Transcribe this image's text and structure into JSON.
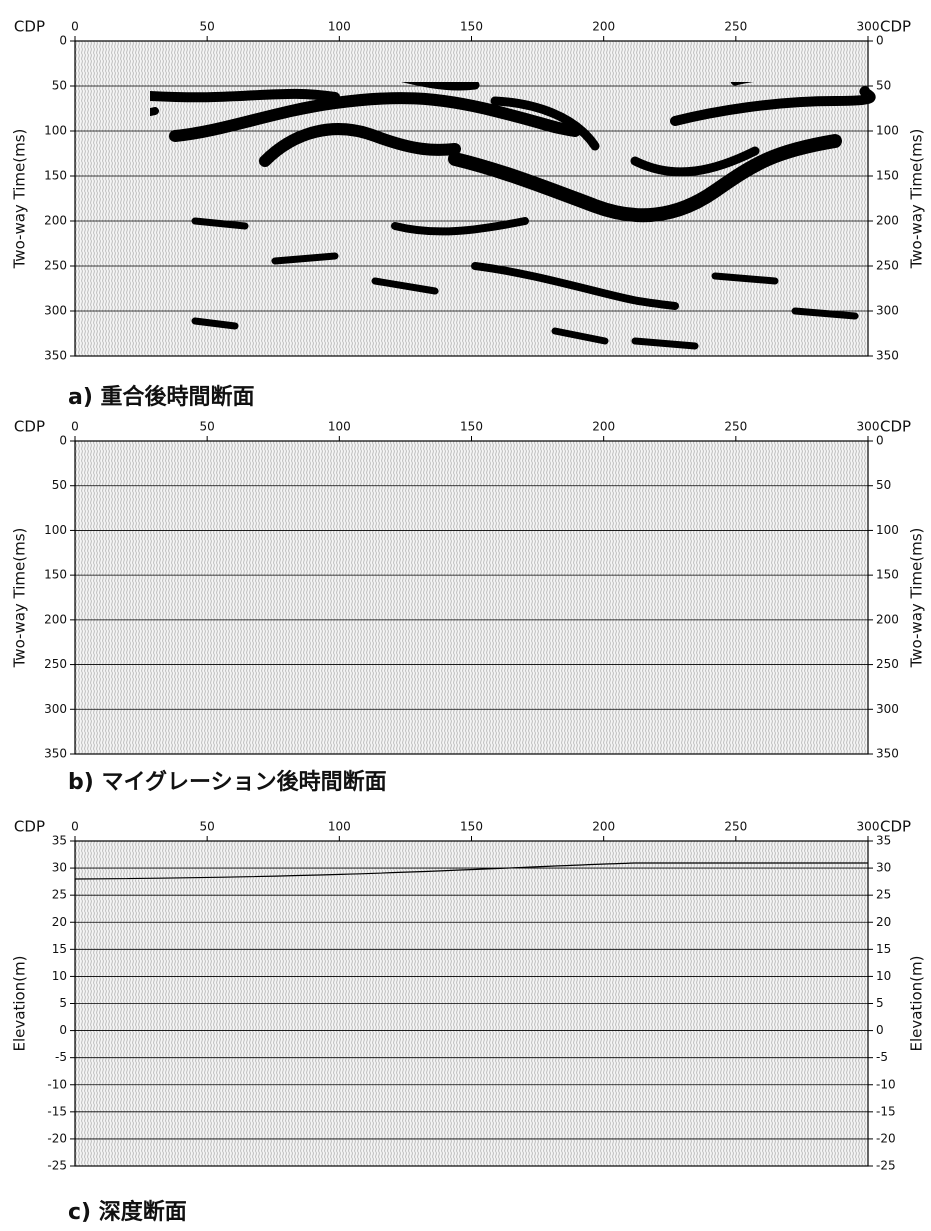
{
  "chart_data": [
    {
      "type": "seismic",
      "caption": "a) 重合後時間断面",
      "x_label": "CDP",
      "y_label": "Two-way Time(ms)",
      "xlim": [
        0,
        300
      ],
      "xticks": [
        0,
        50,
        100,
        150,
        200,
        250,
        300
      ],
      "ylim": [
        350,
        0
      ],
      "yticks": [
        0,
        50,
        100,
        150,
        200,
        250,
        300,
        350
      ],
      "grid": true
    },
    {
      "type": "seismic",
      "caption": "b) マイグレーション後時間断面",
      "x_label": "CDP",
      "y_label": "Two-way Time(ms)",
      "xlim": [
        0,
        300
      ],
      "xticks": [
        0,
        50,
        100,
        150,
        200,
        250,
        300
      ],
      "ylim": [
        350,
        0
      ],
      "yticks": [
        0,
        50,
        100,
        150,
        200,
        250,
        300,
        350
      ],
      "grid": true
    },
    {
      "type": "seismic",
      "caption": "c) 深度断面",
      "x_label": "CDP",
      "y_label": "Elevation(m)",
      "xlim": [
        0,
        300
      ],
      "xticks": [
        0,
        50,
        100,
        150,
        200,
        250,
        300
      ],
      "ylim": [
        -25,
        35
      ],
      "yticks": [
        35,
        30,
        25,
        20,
        15,
        10,
        5,
        0,
        -5,
        -10,
        -15,
        -20,
        -25
      ],
      "grid": true
    }
  ]
}
